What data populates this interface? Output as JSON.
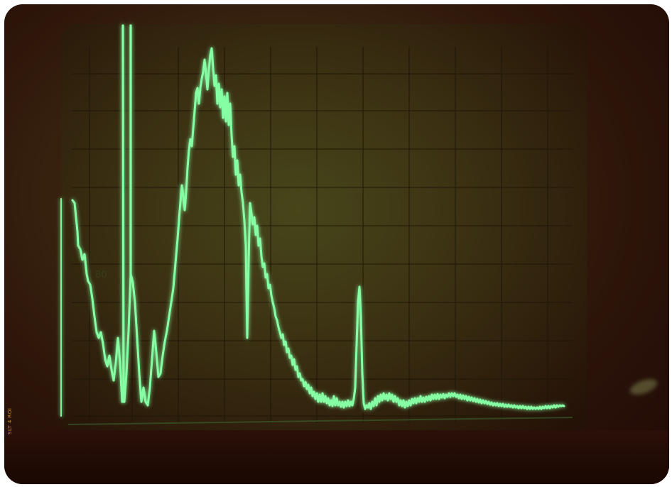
{
  "image": {
    "subject": "oscilloscope-screen-photo",
    "trace_color": "#7dff9a",
    "glow_color": "#3dff70",
    "background_color": "#2c1409",
    "screen_color": "#3c3213"
  },
  "stamp": {
    "text": "SLT 4 ROI"
  }
}
